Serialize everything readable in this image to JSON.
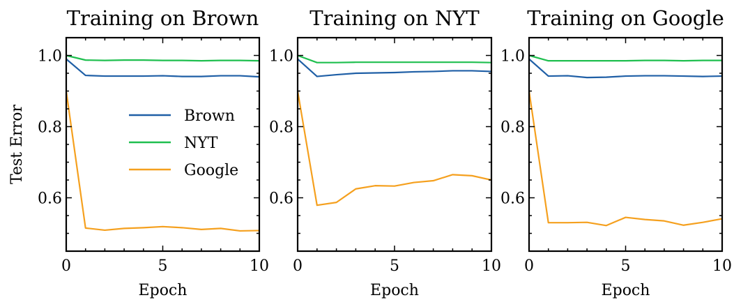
{
  "chart_data": [
    {
      "type": "line",
      "title": "Training on Brown",
      "xlabel": "Epoch",
      "ylabel": "Test Error",
      "xlim": [
        0,
        10
      ],
      "ylim": [
        0.45,
        1.05
      ],
      "xticks": [
        "0",
        "5",
        "10"
      ],
      "yticks": [
        "0.6",
        "0.8",
        "1.0"
      ],
      "x": [
        0,
        1,
        2,
        3,
        4,
        5,
        6,
        7,
        8,
        9,
        10
      ],
      "legend": {
        "show": true,
        "position": "center-right"
      },
      "series": [
        {
          "name": "Brown",
          "color": "#1f5fa6",
          "values": [
            0.99,
            0.944,
            0.942,
            0.942,
            0.942,
            0.943,
            0.941,
            0.941,
            0.943,
            0.943,
            0.94
          ]
        },
        {
          "name": "NYT",
          "color": "#1fbf4f",
          "values": [
            1.0,
            0.987,
            0.986,
            0.987,
            0.987,
            0.986,
            0.986,
            0.985,
            0.986,
            0.986,
            0.985
          ]
        },
        {
          "name": "Google",
          "color": "#f5a01e",
          "values": [
            0.9,
            0.515,
            0.509,
            0.514,
            0.516,
            0.519,
            0.516,
            0.511,
            0.514,
            0.507,
            0.508
          ]
        }
      ]
    },
    {
      "type": "line",
      "title": "Training on NYT",
      "xlabel": "Epoch",
      "ylabel": "",
      "xlim": [
        0,
        10
      ],
      "ylim": [
        0.45,
        1.05
      ],
      "xticks": [
        "0",
        "5",
        "10"
      ],
      "yticks": [
        "0.6",
        "0.8",
        "1.0"
      ],
      "x": [
        0,
        1,
        2,
        3,
        4,
        5,
        6,
        7,
        8,
        9,
        10
      ],
      "legend": {
        "show": false
      },
      "series": [
        {
          "name": "Brown",
          "color": "#1f5fa6",
          "values": [
            0.99,
            0.941,
            0.946,
            0.95,
            0.951,
            0.952,
            0.954,
            0.955,
            0.957,
            0.957,
            0.955
          ]
        },
        {
          "name": "NYT",
          "color": "#1fbf4f",
          "values": [
            1.0,
            0.98,
            0.98,
            0.981,
            0.981,
            0.981,
            0.981,
            0.981,
            0.981,
            0.981,
            0.98
          ]
        },
        {
          "name": "Google",
          "color": "#f5a01e",
          "values": [
            0.9,
            0.579,
            0.587,
            0.625,
            0.634,
            0.633,
            0.643,
            0.648,
            0.665,
            0.662,
            0.65
          ]
        }
      ]
    },
    {
      "type": "line",
      "title": "Training on Google",
      "xlabel": "Epoch",
      "ylabel": "",
      "xlim": [
        0,
        10
      ],
      "ylim": [
        0.45,
        1.05
      ],
      "xticks": [
        "0",
        "5",
        "10"
      ],
      "yticks": [
        "0.6",
        "0.8",
        "1.0"
      ],
      "x": [
        0,
        1,
        2,
        3,
        4,
        5,
        6,
        7,
        8,
        9,
        10
      ],
      "legend": {
        "show": false
      },
      "series": [
        {
          "name": "Brown",
          "color": "#1f5fa6",
          "values": [
            0.99,
            0.942,
            0.943,
            0.938,
            0.939,
            0.942,
            0.943,
            0.943,
            0.942,
            0.941,
            0.942
          ]
        },
        {
          "name": "NYT",
          "color": "#1fbf4f",
          "values": [
            1.0,
            0.985,
            0.985,
            0.985,
            0.985,
            0.985,
            0.986,
            0.986,
            0.985,
            0.986,
            0.986
          ]
        },
        {
          "name": "Google",
          "color": "#f5a01e",
          "values": [
            0.9,
            0.53,
            0.53,
            0.531,
            0.522,
            0.545,
            0.539,
            0.535,
            0.523,
            0.531,
            0.541
          ]
        }
      ]
    }
  ]
}
